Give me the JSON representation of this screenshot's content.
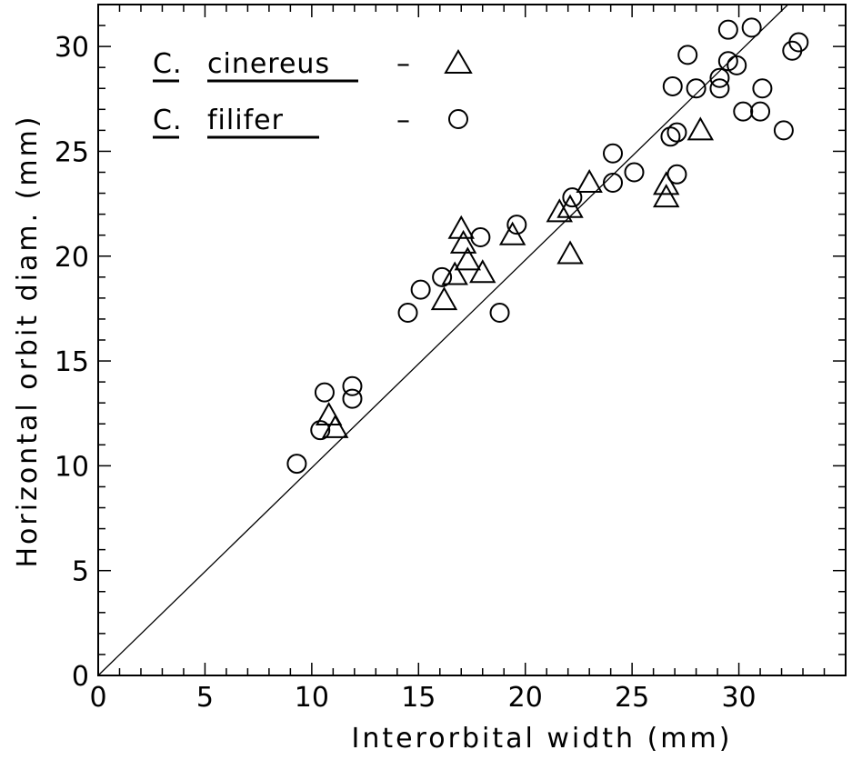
{
  "chart_data": {
    "type": "scatter",
    "xlabel": "Interorbital width (mm)",
    "ylabel": "Horizontal orbit diam. (mm)",
    "xlim": [
      0,
      35
    ],
    "ylim": [
      0,
      32
    ],
    "x_ticks": [
      "0",
      "5",
      "10",
      "15",
      "20",
      "25",
      "30"
    ],
    "y_ticks": [
      "0",
      "5",
      "10",
      "15",
      "20",
      "25",
      "30"
    ],
    "grid": false,
    "legend_position": "top-left",
    "series": [
      {
        "name": "C. cinereus",
        "genus": "C.",
        "species": "cinereus",
        "separator": "–",
        "marker": "triangle",
        "points": [
          [
            10.8,
            12.4
          ],
          [
            11.1,
            11.8
          ],
          [
            16.2,
            17.9
          ],
          [
            16.7,
            19.1
          ],
          [
            17.0,
            21.3
          ],
          [
            17.1,
            20.6
          ],
          [
            17.3,
            19.8
          ],
          [
            18.0,
            19.2
          ],
          [
            19.4,
            21.0
          ],
          [
            21.6,
            22.1
          ],
          [
            22.1,
            22.3
          ],
          [
            22.1,
            20.1
          ],
          [
            23.0,
            23.5
          ],
          [
            26.6,
            23.4
          ],
          [
            26.6,
            22.8
          ],
          [
            28.2,
            26.0
          ]
        ]
      },
      {
        "name": "C. filifer",
        "genus": "C.",
        "species": "filifer",
        "separator": "–",
        "marker": "circle",
        "points": [
          [
            9.3,
            10.1
          ],
          [
            10.4,
            11.7
          ],
          [
            10.6,
            13.5
          ],
          [
            11.9,
            13.8
          ],
          [
            11.9,
            13.2
          ],
          [
            14.5,
            17.3
          ],
          [
            15.1,
            18.4
          ],
          [
            16.1,
            19.0
          ],
          [
            17.9,
            20.9
          ],
          [
            18.8,
            17.3
          ],
          [
            19.6,
            21.5
          ],
          [
            22.2,
            22.8
          ],
          [
            24.1,
            24.9
          ],
          [
            24.1,
            23.5
          ],
          [
            25.1,
            24.0
          ],
          [
            26.8,
            25.7
          ],
          [
            26.9,
            28.1
          ],
          [
            27.1,
            25.9
          ],
          [
            27.1,
            23.9
          ],
          [
            27.6,
            29.6
          ],
          [
            28.0,
            28.0
          ],
          [
            29.1,
            28.5
          ],
          [
            29.1,
            28.0
          ],
          [
            29.5,
            29.3
          ],
          [
            29.5,
            30.8
          ],
          [
            29.9,
            29.1
          ],
          [
            30.2,
            26.9
          ],
          [
            30.6,
            30.9
          ],
          [
            31.0,
            26.9
          ],
          [
            31.1,
            28.0
          ],
          [
            32.1,
            26.0
          ],
          [
            32.5,
            29.8
          ],
          [
            32.8,
            30.2
          ]
        ]
      }
    ],
    "reference_line": {
      "from": [
        0,
        0
      ],
      "to": [
        32.3,
        32
      ]
    },
    "colors": {
      "ink": "#000000",
      "background": "#ffffff"
    }
  }
}
